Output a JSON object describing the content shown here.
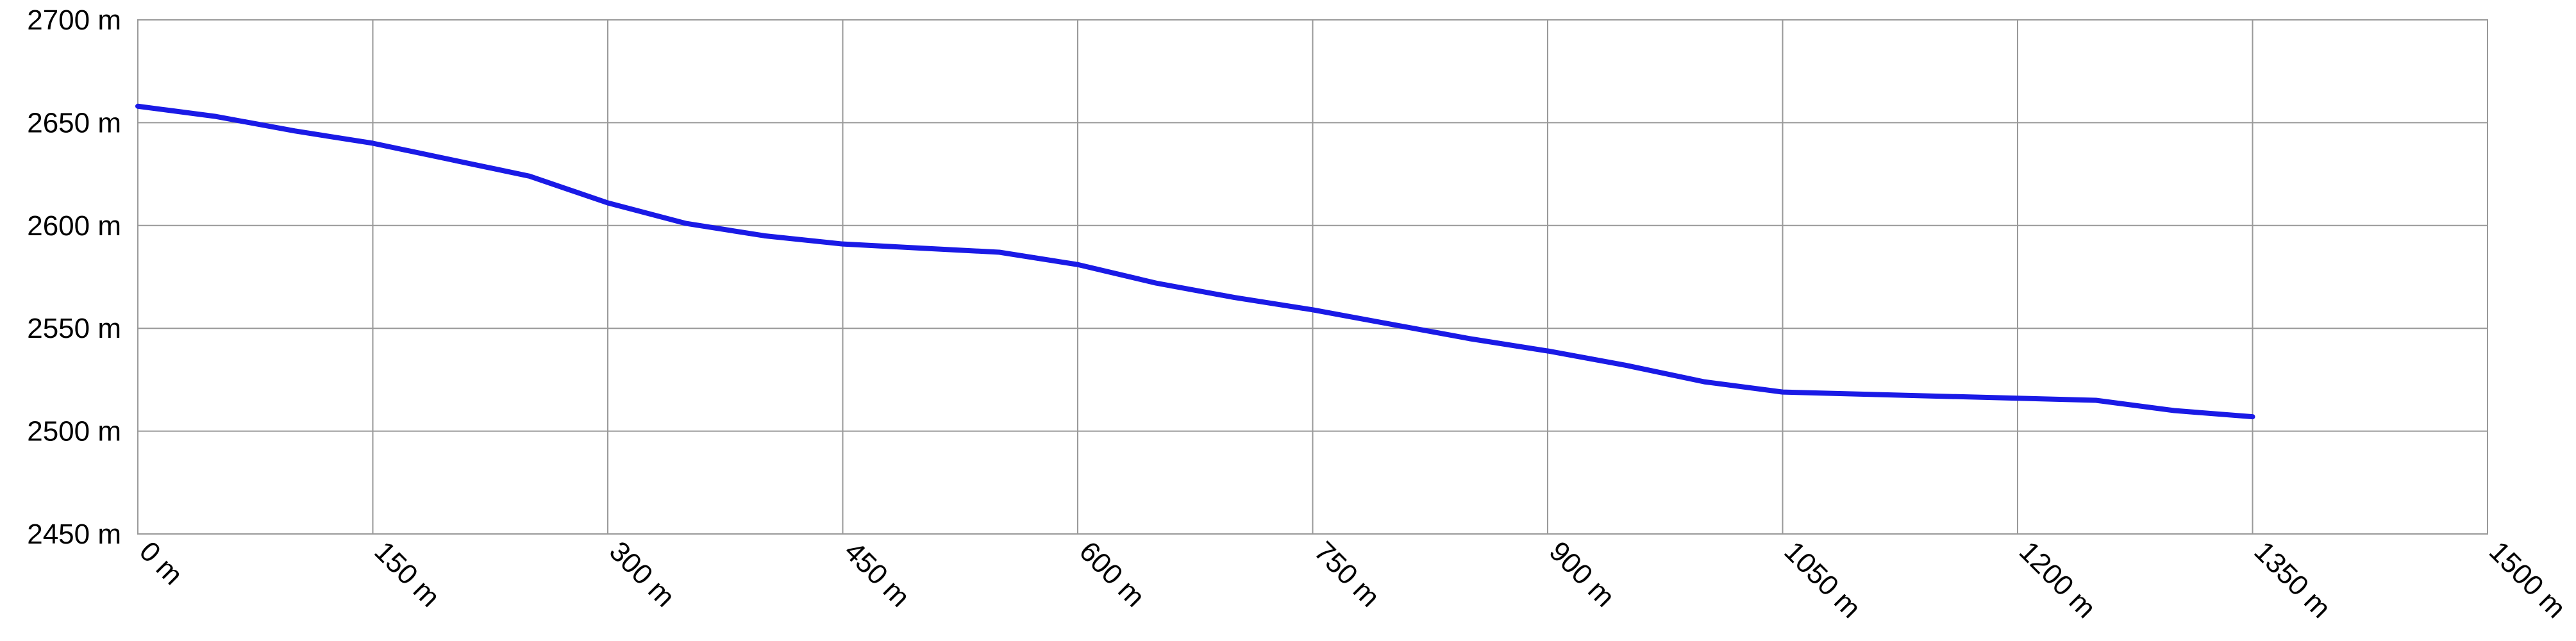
{
  "chart_data": {
    "type": "line",
    "x": [
      0,
      20,
      50,
      100,
      150,
      200,
      250,
      300,
      350,
      400,
      450,
      500,
      550,
      600,
      650,
      700,
      750,
      800,
      850,
      900,
      950,
      1000,
      1050,
      1100,
      1150,
      1200,
      1250,
      1300,
      1350
    ],
    "series": [
      {
        "color": "#1a1ae6",
        "values": [
          2658,
          2656,
          2653,
          2646,
          2640,
          2632,
          2624,
          2611,
          2601,
          2595,
          2591,
          2589,
          2587,
          2581,
          2572,
          2565,
          2559,
          2552,
          2545,
          2539,
          2532,
          2524,
          2519,
          2518,
          2517,
          2516,
          2515,
          2510,
          2507
        ]
      }
    ],
    "xlim": [
      0,
      1500
    ],
    "xticks": [
      {
        "value": 0,
        "label": "0 m"
      },
      {
        "value": 150,
        "label": "150 m"
      },
      {
        "value": 300,
        "label": "300 m"
      },
      {
        "value": 450,
        "label": "450 m"
      },
      {
        "value": 600,
        "label": "600 m"
      },
      {
        "value": 750,
        "label": "750 m"
      },
      {
        "value": 900,
        "label": "900 m"
      },
      {
        "value": 1050,
        "label": "1050 m"
      },
      {
        "value": 1200,
        "label": "1200 m"
      },
      {
        "value": 1350,
        "label": "1350 m"
      },
      {
        "value": 1500,
        "label": "1500 m"
      }
    ],
    "ylim": [
      2450,
      2700
    ],
    "yticks": [
      {
        "value": 2450,
        "label": "2450 m"
      },
      {
        "value": 2500,
        "label": "2500 m"
      },
      {
        "value": 2550,
        "label": "2550 m"
      },
      {
        "value": 2600,
        "label": "2600 m"
      },
      {
        "value": 2650,
        "label": "2650 m"
      },
      {
        "value": 2700,
        "label": "2700 m"
      }
    ],
    "grid": true
  }
}
